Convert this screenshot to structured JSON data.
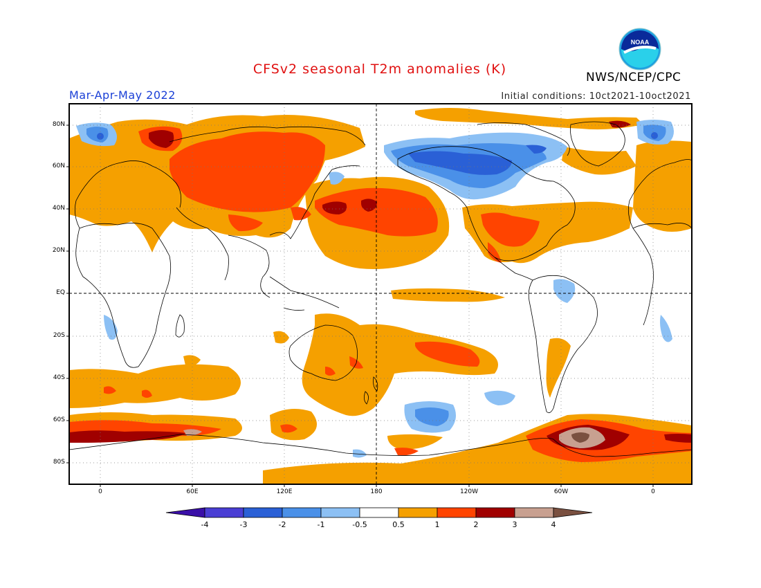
{
  "title": "CFSv2 seasonal T2m anomalies (K)",
  "agency": "NWS/NCEP/CPC",
  "logo_text": "NOAA",
  "season": "Mar-Apr-May 2022",
  "initial_conditions": "Initial conditions: 10ct2021-10oct2021",
  "lat_labels": [
    "80N",
    "60N",
    "40N",
    "20N",
    "EQ",
    "20S",
    "40S",
    "60S",
    "80S"
  ],
  "lon_labels": [
    "0",
    "60E",
    "120E",
    "180",
    "120W",
    "60W",
    "0"
  ],
  "colorbar": {
    "labels": [
      "-4",
      "-3",
      "-2",
      "-1",
      "-0.5",
      "0.5",
      "1",
      "2",
      "3",
      "4"
    ],
    "colors": [
      "#3a0fa8",
      "#4a3ed4",
      "#2a60d6",
      "#4a90e8",
      "#8cc0f4",
      "#ffffff",
      "#f5a000",
      "#ff4400",
      "#a00000",
      "#c8a090",
      "#7a5040"
    ]
  },
  "colors": {
    "orange": "#f5a000",
    "red": "#ff4400",
    "darkred": "#a00000",
    "tan": "#c8a090",
    "brown": "#7a5040",
    "lightblue": "#8cc0f4",
    "midblue": "#4a90e8",
    "blue": "#2a60d6"
  }
}
